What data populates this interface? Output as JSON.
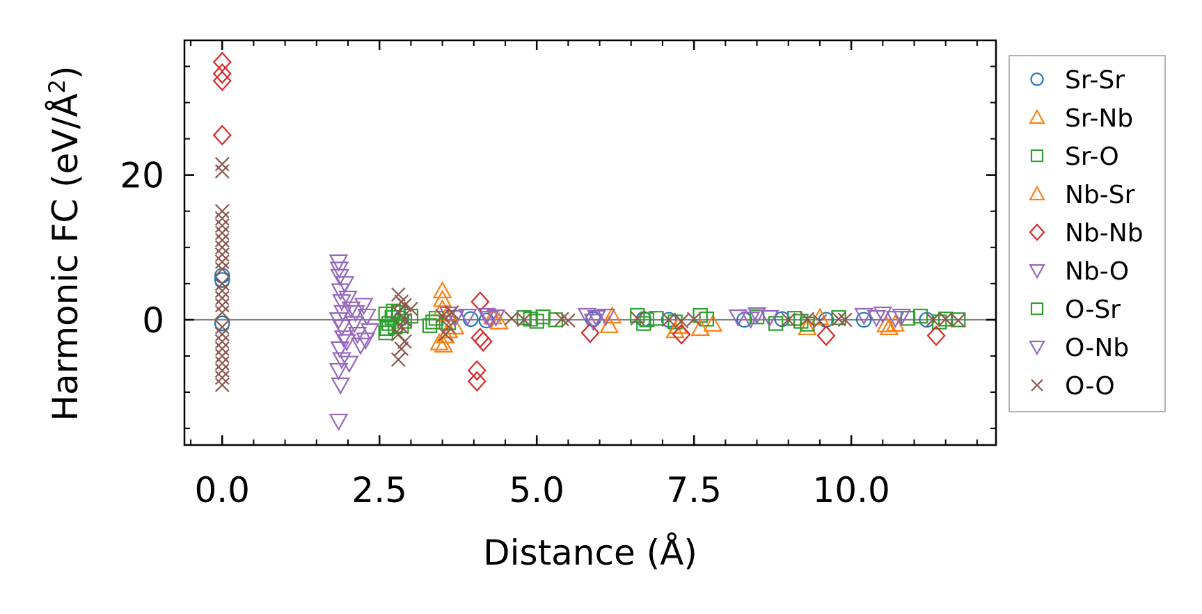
{
  "chart_data": {
    "type": "scatter",
    "title": "",
    "xlabel": "Distance (Å)",
    "ylabel_prefix": "Harmonic FC (eV/Å",
    "ylabel_sup": "2",
    "ylabel_suffix": ")",
    "xlim": [
      -0.6,
      12.3
    ],
    "ylim": [
      -17.3,
      38.6
    ],
    "x_ticks": [
      {
        "value": 0.0,
        "label": "0.0"
      },
      {
        "value": 2.5,
        "label": "2.5"
      },
      {
        "value": 5.0,
        "label": "5.0"
      },
      {
        "value": 7.5,
        "label": "7.5"
      },
      {
        "value": 10.0,
        "label": "10.0"
      }
    ],
    "y_ticks": [
      {
        "value": 0,
        "label": "0"
      },
      {
        "value": 20,
        "label": "20"
      }
    ],
    "zero_line": true,
    "legend_position": "right",
    "series": [
      {
        "name": "Sr-Sr",
        "marker": "circle",
        "color": "#1f77b4",
        "points": [
          [
            0,
            6.1
          ],
          [
            0,
            5.5
          ],
          [
            0,
            -0.5
          ],
          [
            2.85,
            0.2
          ],
          [
            3.95,
            0.1
          ],
          [
            4.2,
            -0.1
          ],
          [
            5.9,
            0.1
          ],
          [
            6.7,
            0.1
          ],
          [
            7.1,
            0.0
          ],
          [
            8.3,
            0.0
          ],
          [
            8.9,
            0.1
          ],
          [
            9.6,
            0.0
          ],
          [
            10.2,
            0.0
          ],
          [
            11.2,
            0.0
          ]
        ]
      },
      {
        "name": "Sr-Nb",
        "marker": "triangle-up",
        "color": "#ff7f0e",
        "points": [
          [
            3.5,
            4.0
          ],
          [
            3.5,
            2.8
          ],
          [
            3.45,
            -3.2
          ],
          [
            3.55,
            -2.2
          ],
          [
            3.6,
            -1.5
          ],
          [
            3.7,
            -1.0
          ],
          [
            4.3,
            0.4
          ],
          [
            4.4,
            -0.3
          ],
          [
            6.15,
            -0.8
          ],
          [
            6.2,
            0.5
          ],
          [
            7.2,
            -1.5
          ],
          [
            7.8,
            -0.6
          ],
          [
            9.3,
            -1.1
          ],
          [
            9.5,
            0.3
          ],
          [
            10.6,
            -1.1
          ],
          [
            10.7,
            -0.6
          ]
        ]
      },
      {
        "name": "Sr-O",
        "marker": "square",
        "color": "#2ca02c",
        "points": [
          [
            2.6,
            -1.8
          ],
          [
            2.6,
            0.8
          ],
          [
            2.65,
            -0.5
          ],
          [
            2.7,
            0.3
          ],
          [
            2.75,
            -1.0
          ],
          [
            2.8,
            1.0
          ],
          [
            2.9,
            -0.2
          ],
          [
            3.0,
            0.5
          ],
          [
            3.3,
            -0.8
          ],
          [
            3.4,
            0.2
          ],
          [
            3.6,
            -0.4
          ],
          [
            4.8,
            0.3
          ],
          [
            5.0,
            -0.2
          ],
          [
            5.1,
            0.4
          ],
          [
            5.3,
            0.0
          ],
          [
            6.6,
            0.6
          ],
          [
            6.7,
            -0.5
          ],
          [
            6.9,
            0.2
          ],
          [
            7.2,
            -0.3
          ],
          [
            7.6,
            0.6
          ],
          [
            7.7,
            0.1
          ],
          [
            8.5,
            0.4
          ],
          [
            8.8,
            -0.5
          ],
          [
            9.1,
            0.2
          ],
          [
            9.3,
            -0.6
          ],
          [
            9.8,
            0.3
          ],
          [
            10.9,
            0.2
          ],
          [
            11.1,
            0.5
          ],
          [
            11.4,
            -0.3
          ],
          [
            11.7,
            0.0
          ]
        ]
      },
      {
        "name": "Nb-Sr",
        "marker": "triangle-up",
        "color": "#ff7f0e",
        "points": [
          [
            3.5,
            1.5
          ],
          [
            3.52,
            -3.5
          ],
          [
            3.58,
            0.8
          ],
          [
            7.25,
            -0.9
          ],
          [
            7.6,
            -1.2
          ],
          [
            10.55,
            -0.7
          ]
        ]
      },
      {
        "name": "Nb-Nb",
        "marker": "diamond",
        "color": "#d62728",
        "points": [
          [
            0,
            35.6
          ],
          [
            0,
            34.0
          ],
          [
            0,
            33.0
          ],
          [
            0,
            25.5
          ],
          [
            4.1,
            2.5
          ],
          [
            4.1,
            -2.5
          ],
          [
            4.15,
            -3.0
          ],
          [
            4.05,
            -7.0
          ],
          [
            4.05,
            -8.5
          ],
          [
            5.85,
            -1.8
          ],
          [
            7.3,
            -2.0
          ],
          [
            9.6,
            -2.2
          ],
          [
            11.35,
            -2.2
          ]
        ]
      },
      {
        "name": "Nb-O",
        "marker": "triangle-down",
        "color": "#9467bd",
        "points": [
          [
            1.85,
            8.0
          ],
          [
            1.86,
            7.0
          ],
          [
            1.87,
            6.0
          ],
          [
            1.88,
            4.0
          ],
          [
            1.9,
            2.5
          ],
          [
            1.92,
            1.0
          ],
          [
            1.85,
            0.0
          ],
          [
            1.9,
            -1.0
          ],
          [
            1.93,
            -2.5
          ],
          [
            1.87,
            -4.0
          ],
          [
            1.9,
            -5.5
          ],
          [
            1.85,
            -7.0
          ],
          [
            1.88,
            -9.0
          ],
          [
            1.85,
            -14.0
          ],
          [
            2.0,
            3.0
          ],
          [
            2.05,
            1.5
          ],
          [
            2.1,
            -0.5
          ],
          [
            2.15,
            -2.0
          ],
          [
            2.2,
            -3.5
          ],
          [
            2.25,
            2.0
          ],
          [
            2.3,
            0.5
          ],
          [
            2.35,
            -1.5
          ],
          [
            3.6,
            0.8
          ],
          [
            3.7,
            0.3
          ],
          [
            3.9,
            0.5
          ],
          [
            4.2,
            0.6
          ],
          [
            4.35,
            0.4
          ],
          [
            5.8,
            0.6
          ],
          [
            5.95,
            0.3
          ],
          [
            6.1,
            0.5
          ],
          [
            8.2,
            0.4
          ],
          [
            8.5,
            0.7
          ],
          [
            8.7,
            0.3
          ],
          [
            10.2,
            0.6
          ],
          [
            10.5,
            0.8
          ],
          [
            10.7,
            0.2
          ],
          [
            10.8,
            0.5
          ]
        ]
      },
      {
        "name": "O-Sr",
        "marker": "square",
        "color": "#2ca02c",
        "points": [
          [
            2.62,
            -1.2
          ],
          [
            2.72,
            1.2
          ],
          [
            2.85,
            -0.8
          ],
          [
            3.35,
            -0.3
          ],
          [
            4.9,
            0.1
          ],
          [
            6.75,
            0.0
          ],
          [
            9.2,
            -0.2
          ],
          [
            11.5,
            0.1
          ]
        ]
      },
      {
        "name": "O-Nb",
        "marker": "triangle-down",
        "color": "#9467bd",
        "points": [
          [
            1.95,
            5.0
          ],
          [
            1.98,
            -3.0
          ],
          [
            2.02,
            -6.0
          ],
          [
            2.12,
            1.0
          ],
          [
            2.28,
            -2.8
          ],
          [
            4.25,
            0.2
          ],
          [
            5.9,
            -0.2
          ],
          [
            8.4,
            0.1
          ],
          [
            10.4,
            0.3
          ]
        ]
      },
      {
        "name": "O-O",
        "marker": "x",
        "color": "#8c564b",
        "points": [
          [
            0,
            21.5
          ],
          [
            0,
            20.5
          ],
          [
            0,
            15.0
          ],
          [
            0,
            14.0
          ],
          [
            0,
            13.0
          ],
          [
            0,
            12.0
          ],
          [
            0,
            11.0
          ],
          [
            0,
            10.0
          ],
          [
            0,
            9.0
          ],
          [
            0,
            8.0
          ],
          [
            0,
            7.0
          ],
          [
            0,
            5.0
          ],
          [
            0,
            4.0
          ],
          [
            0,
            3.0
          ],
          [
            0,
            2.0
          ],
          [
            0,
            1.0
          ],
          [
            0,
            -1.0
          ],
          [
            0,
            -2.0
          ],
          [
            0,
            -3.0
          ],
          [
            0,
            -4.0
          ],
          [
            0,
            -5.0
          ],
          [
            0,
            -6.0
          ],
          [
            0,
            -7.0
          ],
          [
            0,
            -8.0
          ],
          [
            0,
            -9.0
          ],
          [
            2.8,
            3.5
          ],
          [
            2.85,
            2.5
          ],
          [
            2.9,
            2.0
          ],
          [
            2.8,
            1.0
          ],
          [
            2.9,
            0.0
          ],
          [
            2.85,
            -1.0
          ],
          [
            2.8,
            -2.0
          ],
          [
            2.9,
            -3.0
          ],
          [
            2.85,
            -4.0
          ],
          [
            2.8,
            -5.5
          ],
          [
            3.0,
            1.5
          ],
          [
            3.5,
            0.5
          ],
          [
            3.6,
            -1.0
          ],
          [
            3.55,
            -2.0
          ],
          [
            3.65,
            1.0
          ],
          [
            4.6,
            0.2
          ],
          [
            4.8,
            0.0
          ],
          [
            5.4,
            0.1
          ],
          [
            5.5,
            -0.1
          ],
          [
            6.6,
            0.2
          ],
          [
            7.1,
            0.0
          ],
          [
            7.3,
            -0.2
          ],
          [
            7.5,
            0.1
          ],
          [
            9.0,
            0.0
          ],
          [
            9.3,
            0.1
          ],
          [
            9.5,
            -0.2
          ],
          [
            9.8,
            0.1
          ],
          [
            9.9,
            0.0
          ],
          [
            11.3,
            0.0
          ],
          [
            11.5,
            0.1
          ],
          [
            11.7,
            -0.1
          ]
        ]
      }
    ]
  }
}
